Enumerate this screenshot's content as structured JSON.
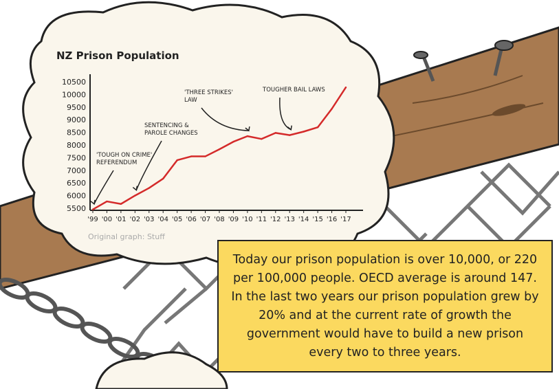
{
  "chart_data": {
    "type": "line",
    "title": "NZ Prison Population",
    "xlabel": "",
    "ylabel": "",
    "categories": [
      "'99",
      "'00",
      "'01",
      "'02",
      "'03",
      "'04",
      "'05",
      "'06",
      "'07",
      "'08",
      "'09",
      "'10",
      "'11",
      "'12",
      "'13",
      "'14",
      "'15",
      "'16",
      "'17"
    ],
    "values": [
      5450,
      5770,
      5670,
      6000,
      6300,
      6670,
      7400,
      7550,
      7550,
      7830,
      8130,
      8350,
      8240,
      8480,
      8390,
      8530,
      8700,
      9430,
      10280
    ],
    "ylim": [
      5500,
      10500
    ],
    "yticks": [
      5500,
      6000,
      6500,
      7000,
      7500,
      8000,
      8500,
      9000,
      9500,
      10000,
      10500
    ],
    "grid": false,
    "line_color": "#d42a2a",
    "annotations": [
      {
        "text": [
          "'Tough on crime'",
          "referendum"
        ],
        "x": "'99"
      },
      {
        "text": [
          "Sentencing &",
          "parole changes"
        ],
        "x": "'02"
      },
      {
        "text": [
          "'Three strikes'",
          "law"
        ],
        "x": "'10"
      },
      {
        "text": [
          "Tougher bail laws"
        ],
        "x": "'13"
      }
    ],
    "source": "Original graph: Stuff"
  },
  "caption": "Today our prison population is over 10,000, or 220 per 100,000 people. OECD average is around 147. In the last two years our prison population grew by 20% and at the current rate of growth the government would have to build a new prison every two to three years.",
  "colors": {
    "caption_bg": "#fbd95f",
    "cloud": "#faf6ec",
    "wood": "#a87a50"
  }
}
